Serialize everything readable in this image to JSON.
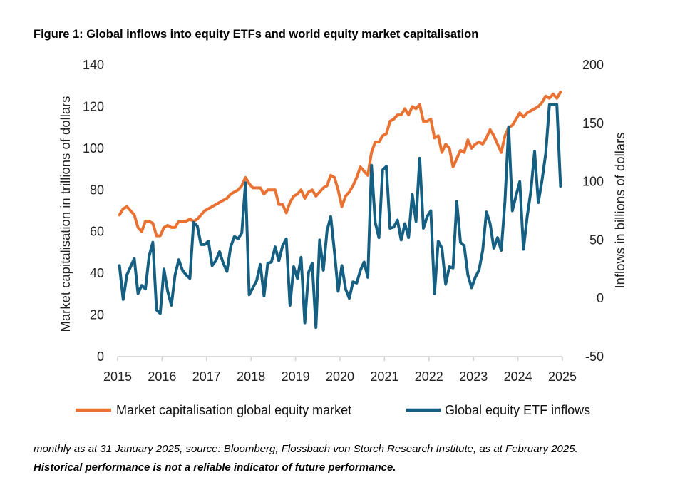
{
  "title": "Figure 1: Global inflows into equity ETFs and world equity market capitalisation",
  "footnote": "monthly as at 31 January 2025, source: Bloomberg, Flossbach von Storch Research Institute, as at February 2025.",
  "disclaimer": "Historical performance is not a reliable indicator of future performance.",
  "chart_data": {
    "type": "line",
    "title": "Figure 1: Global inflows into equity ETFs and world equity market capitalisation",
    "x_start": "2015-01",
    "x_frequency": "monthly",
    "x_ticks": [
      "2015",
      "2016",
      "2017",
      "2018",
      "2019",
      "2020",
      "2021",
      "2022",
      "2023",
      "2024",
      "2025"
    ],
    "ylabel_left": "Market capitalisation in trillions of dollars",
    "ylabel_right": "Inflows in billions of dollars",
    "ylim_left": [
      0,
      140
    ],
    "yticks_left": [
      "0",
      "20",
      "40",
      "60",
      "80",
      "100",
      "120",
      "140"
    ],
    "ylim_right": [
      -50,
      200
    ],
    "yticks_right": [
      "-50",
      "0",
      "50",
      "100",
      "150",
      "200"
    ],
    "grid": false,
    "legend_position": "bottom",
    "series": [
      {
        "name": "Market capitalisation global equity market",
        "axis": "left",
        "color": "#E97132",
        "values": [
          68,
          71,
          72,
          70,
          68,
          62,
          60,
          65,
          65,
          64,
          58,
          58,
          62,
          63,
          62,
          62,
          65,
          65,
          65,
          66,
          65,
          66,
          68,
          70,
          71,
          72,
          73,
          74,
          75,
          76,
          78,
          79,
          80,
          82,
          86,
          83,
          81,
          81,
          81,
          78,
          80,
          80,
          80,
          73,
          73,
          69,
          74,
          77,
          78,
          80,
          76,
          79,
          80,
          77,
          79,
          81,
          82,
          87,
          86,
          80,
          72,
          77,
          79,
          82,
          86,
          91,
          89,
          87,
          98,
          103,
          103,
          106,
          107,
          113,
          114,
          116,
          116,
          119,
          116,
          120,
          119,
          121,
          113,
          113,
          114,
          105,
          106,
          98,
          102,
          100,
          91,
          95,
          99,
          98,
          104,
          100,
          102,
          103,
          102,
          105,
          109,
          106,
          102,
          98,
          106,
          110,
          111,
          114,
          117,
          115,
          117,
          118,
          119,
          120,
          122,
          125,
          124,
          126,
          124,
          127
        ]
      },
      {
        "name": "Global equity ETF inflows",
        "axis": "right",
        "color": "#156082",
        "values": [
          28,
          -1,
          20,
          27,
          34,
          4,
          11,
          8,
          36,
          48,
          -10,
          -13,
          25,
          6,
          -6,
          20,
          33,
          24,
          20,
          17,
          65,
          62,
          46,
          46,
          49,
          28,
          32,
          40,
          30,
          23,
          44,
          53,
          51,
          56,
          99,
          3,
          9,
          15,
          29,
          2,
          30,
          31,
          44,
          32,
          45,
          51,
          -6,
          27,
          17,
          35,
          -21,
          22,
          30,
          -25,
          50,
          24,
          58,
          70,
          40,
          6,
          28,
          8,
          0,
          14,
          13,
          24,
          31,
          18,
          114,
          65,
          52,
          110,
          113,
          60,
          61,
          67,
          50,
          64,
          52,
          89,
          66,
          120,
          60,
          70,
          75,
          4,
          49,
          43,
          12,
          27,
          26,
          83,
          48,
          45,
          20,
          9,
          18,
          24,
          41,
          74,
          64,
          43,
          52,
          41,
          83,
          147,
          75,
          88,
          100,
          42,
          70,
          92,
          126,
          82,
          101,
          124,
          166,
          166,
          166,
          96
        ]
      }
    ]
  }
}
